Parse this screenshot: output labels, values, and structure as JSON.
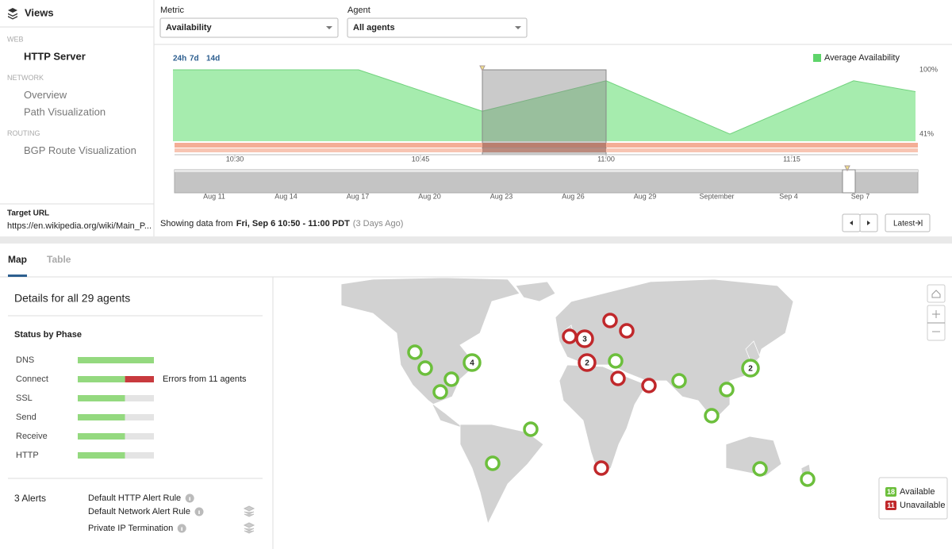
{
  "sidebar": {
    "title": "Views",
    "sections": [
      {
        "label": "WEB",
        "items": [
          "HTTP Server"
        ]
      },
      {
        "label": "NETWORK",
        "items": [
          "Overview",
          "Path Visualization"
        ]
      },
      {
        "label": "ROUTING",
        "items": [
          "BGP Route Visualization"
        ]
      }
    ],
    "target_label": "Target URL",
    "target_url": "https://en.wikipedia.org/wiki/Main_P..."
  },
  "controls": {
    "metric_label": "Metric",
    "metric": "Availability",
    "agent_label": "Agent",
    "agent": "All agents"
  },
  "chart_data": {
    "type": "area",
    "range_buttons": [
      "24h",
      "7d",
      "14d"
    ],
    "x": [
      "10:25",
      "10:40",
      "10:50",
      "11:00",
      "11:10",
      "11:20",
      "11:25"
    ],
    "series": [
      {
        "name": "Average Availability",
        "color": "#a6ecae",
        "values": [
          100,
          100,
          62,
          90,
          41,
          90,
          80
        ]
      }
    ],
    "ylim": [
      41,
      100
    ],
    "yticks": [
      {
        "value": 100,
        "label": "100%"
      },
      {
        "value": 41,
        "label": "41%"
      }
    ],
    "xticks": [
      "10:30",
      "10:45",
      "11:00",
      "11:15"
    ]
  },
  "timeline": {
    "ticks": [
      "Aug 11",
      "Aug 14",
      "Aug 17",
      "Aug 20",
      "Aug 23",
      "Aug 26",
      "Aug 29",
      "September",
      "Sep 4",
      "Sep 7"
    ]
  },
  "status": {
    "prefix": "Showing data from",
    "range": "Fri, Sep 6 10:50 - 11:00 PDT",
    "suffix": "(3 Days Ago)",
    "latest": "Latest"
  },
  "tabs": [
    "Map",
    "Table"
  ],
  "details": {
    "heading": "Details for all 29 agents",
    "phase_title": "Status by Phase",
    "phases": [
      {
        "name": "DNS",
        "ok": 29,
        "errors": 0,
        "pending": 0
      },
      {
        "name": "Connect",
        "ok": 18,
        "errors": 11,
        "pending": 0,
        "note": "Errors from 11 agents"
      },
      {
        "name": "SSL",
        "ok": 18,
        "errors": 0,
        "pending": 11
      },
      {
        "name": "Send",
        "ok": 18,
        "errors": 0,
        "pending": 11
      },
      {
        "name": "Receive",
        "ok": 18,
        "errors": 0,
        "pending": 11
      },
      {
        "name": "HTTP",
        "ok": 18,
        "errors": 0,
        "pending": 11
      }
    ],
    "alerts_title": "3 Alerts",
    "alerts": [
      "Default HTTP Alert Rule",
      "Default Network Alert Rule",
      "Private IP Termination"
    ]
  },
  "map": {
    "colors": {
      "available": "#6cbf3c",
      "unavailable": "#c0282b"
    },
    "agents": [
      {
        "status": "available"
      },
      {
        "status": "available"
      },
      {
        "status": "available"
      },
      {
        "status": "available"
      },
      {
        "status": "available",
        "count": 4
      },
      {
        "status": "available"
      },
      {
        "status": "available"
      },
      {
        "status": "available"
      },
      {
        "status": "available"
      },
      {
        "status": "available",
        "count": 2
      },
      {
        "status": "available"
      },
      {
        "status": "available"
      },
      {
        "status": "available"
      },
      {
        "status": "available"
      },
      {
        "status": "unavailable"
      },
      {
        "status": "unavailable",
        "count": 3
      },
      {
        "status": "unavailable"
      },
      {
        "status": "unavailable"
      },
      {
        "status": "unavailable",
        "count": 2
      },
      {
        "status": "unavailable"
      },
      {
        "status": "unavailable"
      },
      {
        "status": "unavailable"
      }
    ],
    "legend": {
      "available": 18,
      "available_label": "Available",
      "unavailable": 11,
      "unavailable_label": "Unavailable"
    }
  }
}
